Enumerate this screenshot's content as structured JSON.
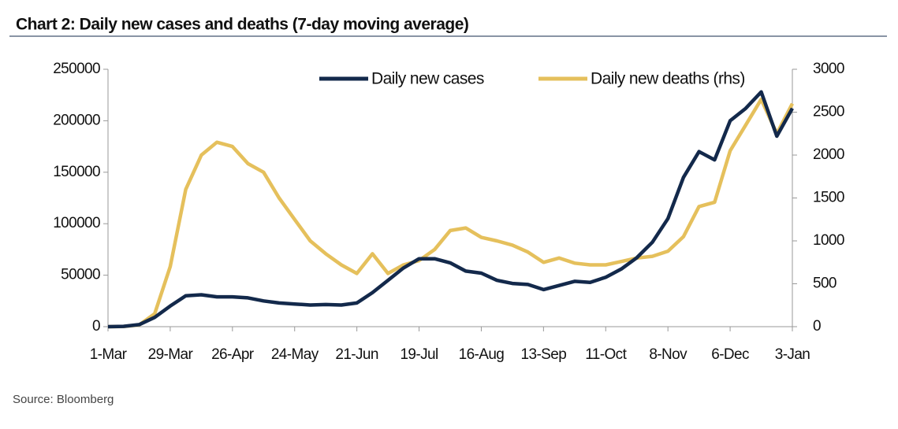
{
  "chart_data": {
    "type": "line",
    "title": "Chart 2: Daily new cases and deaths (7-day moving average)",
    "source": "Source: Bloomberg",
    "categories": [
      "1-Mar",
      null,
      null,
      null,
      "29-Mar",
      null,
      null,
      null,
      "26-Apr",
      null,
      null,
      null,
      "24-May",
      null,
      null,
      null,
      "21-Jun",
      null,
      null,
      null,
      "19-Jul",
      null,
      null,
      null,
      "16-Aug",
      null,
      null,
      null,
      "13-Sep",
      null,
      null,
      null,
      "11-Oct",
      null,
      null,
      null,
      "8-Nov",
      null,
      null,
      null,
      "6-Dec",
      null,
      null,
      null,
      "3-Jan"
    ],
    "series": [
      {
        "name": "Daily new cases",
        "color": "#13294b",
        "values": [
          0,
          300,
          2000,
          9000,
          20000,
          30000,
          31000,
          29000,
          29000,
          28000,
          25000,
          23000,
          22000,
          21000,
          21500,
          21000,
          23000,
          33000,
          45000,
          57000,
          66000,
          66000,
          62000,
          54000,
          52000,
          45000,
          42000,
          41000,
          36000,
          40000,
          44000,
          43000,
          48000,
          56000,
          67000,
          82000,
          105000,
          145000,
          170000,
          162000,
          200000,
          212000,
          228000,
          185000,
          212000
        ]
      },
      {
        "name": "Daily new deaths (rhs)",
        "color": "#e5c05c",
        "axis": "y2",
        "values": [
          0,
          2,
          20,
          150,
          700,
          1600,
          2000,
          2150,
          2100,
          1900,
          1800,
          1500,
          1250,
          1000,
          850,
          720,
          620,
          850,
          620,
          720,
          770,
          900,
          1120,
          1150,
          1040,
          1000,
          950,
          870,
          750,
          800,
          740,
          720,
          720,
          760,
          800,
          820,
          880,
          1050,
          1400,
          1450,
          2050,
          2350,
          2650,
          2250,
          2600
        ]
      }
    ],
    "ylim": [
      0,
      250000
    ],
    "yticks": [
      0,
      50000,
      100000,
      150000,
      200000,
      250000
    ],
    "y2lim": [
      0,
      3000
    ],
    "y2ticks": [
      0,
      500,
      1000,
      1500,
      2000,
      2500,
      3000
    ],
    "legend": "top"
  }
}
